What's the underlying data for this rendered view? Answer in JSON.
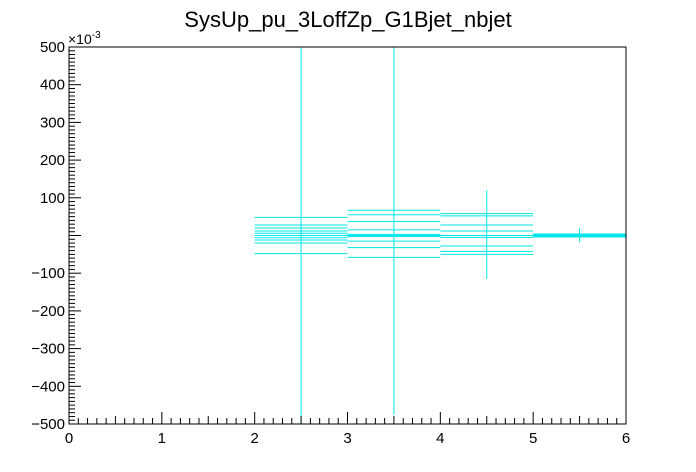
{
  "chart_data": {
    "type": "line",
    "title": "SysUp_pu_3LoffZp_G1Bjet_nbjet",
    "xlabel": "",
    "ylabel": "",
    "xlim": [
      0,
      6
    ],
    "ylim": [
      -500,
      500
    ],
    "y_exponent_label": "×10",
    "y_exponent_power": "-3",
    "x_ticks": [
      0,
      1,
      2,
      3,
      4,
      5,
      6
    ],
    "x_tick_labels": [
      "0",
      "1",
      "2",
      "3",
      "4",
      "5",
      "6"
    ],
    "y_ticks": [
      -500,
      -400,
      -300,
      -200,
      -100,
      100,
      200,
      300,
      400,
      500
    ],
    "y_tick_labels": [
      "−500",
      "−400",
      "−300",
      "−200",
      "−100",
      "100",
      "200",
      "300",
      "400",
      "500"
    ],
    "grid": false,
    "legend": "none",
    "colors": {
      "series": "#00e5e5",
      "axis": "#000000",
      "background": "#ffffff"
    },
    "series": [
      {
        "points": [
          {
            "x": 2.5,
            "x_low": 2,
            "x_high": 3,
            "y": 0,
            "y_low": -500,
            "y_high": 500
          },
          {
            "x": 3.5,
            "x_low": 3,
            "x_high": 4,
            "y": 0,
            "y_low": -475,
            "y_high": 500
          },
          {
            "x": 4.5,
            "x_low": 4,
            "x_high": 5,
            "y": 0,
            "y_low": -115,
            "y_high": 120
          },
          {
            "x": 5.5,
            "x_low": 5,
            "x_high": 6,
            "y": 0,
            "y_low": -18,
            "y_high": 20
          }
        ]
      }
    ],
    "bin_lines": [
      {
        "x_low": 2,
        "x_high": 3,
        "values": [
          48,
          28,
          20,
          12,
          6,
          0,
          -6,
          -12,
          -20,
          -48
        ]
      },
      {
        "x_low": 3,
        "x_high": 4,
        "values": [
          67,
          55,
          37,
          15,
          3,
          0,
          -3,
          -15,
          -32,
          -58
        ]
      },
      {
        "x_low": 4,
        "x_high": 5,
        "values": [
          58,
          52,
          28,
          12,
          0,
          -5,
          -28,
          -42,
          -50
        ]
      },
      {
        "x_low": 5,
        "x_high": 6,
        "values": [
          3,
          2,
          1,
          0,
          -1,
          -2
        ]
      }
    ]
  }
}
